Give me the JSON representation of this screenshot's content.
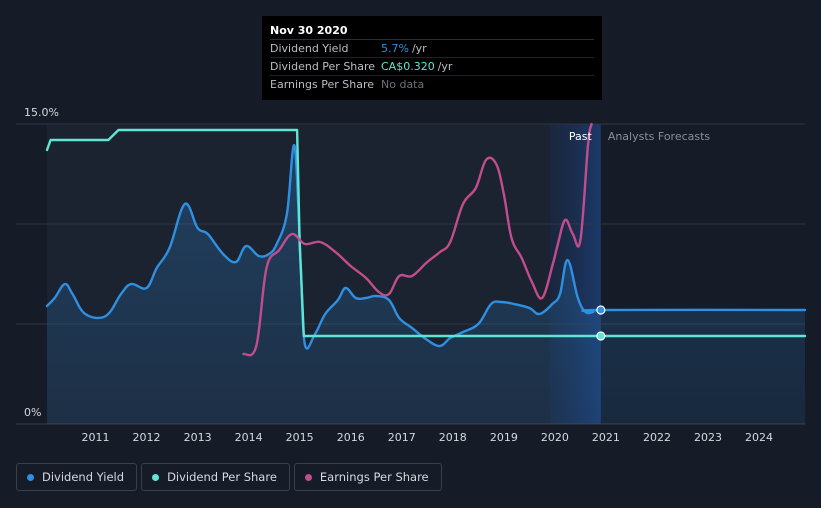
{
  "chart_data": {
    "type": "line",
    "title": "",
    "y_tick_labels": [
      "15.0%",
      "0%"
    ],
    "ylim": [
      0,
      15
    ],
    "x_tick_labels": [
      "2011",
      "2012",
      "2013",
      "2014",
      "2015",
      "2016",
      "2017",
      "2018",
      "2019",
      "2020",
      "2021",
      "2022",
      "2023",
      "2024"
    ],
    "xlim": [
      2010.05,
      2024.9
    ],
    "grid": true,
    "regions": {
      "past_label": "Past",
      "forecast_label": "Analysts Forecasts",
      "past_end": 2020.9,
      "highlight_start": 2019.9
    },
    "series": [
      {
        "name": "Dividend Yield",
        "color": "#2f8fe0",
        "filled": true,
        "points": [
          [
            2010.05,
            5.9
          ],
          [
            2010.2,
            6.3
          ],
          [
            2010.4,
            7.0
          ],
          [
            2010.55,
            6.5
          ],
          [
            2010.8,
            5.5
          ],
          [
            2011.2,
            5.4
          ],
          [
            2011.5,
            6.5
          ],
          [
            2011.7,
            7.0
          ],
          [
            2012.0,
            6.8
          ],
          [
            2012.2,
            7.8
          ],
          [
            2012.45,
            8.8
          ],
          [
            2012.75,
            11.0
          ],
          [
            2013.0,
            9.8
          ],
          [
            2013.2,
            9.5
          ],
          [
            2013.5,
            8.5
          ],
          [
            2013.75,
            8.1
          ],
          [
            2013.95,
            8.9
          ],
          [
            2014.2,
            8.4
          ],
          [
            2014.4,
            8.5
          ],
          [
            2014.55,
            9.0
          ],
          [
            2014.75,
            10.5
          ],
          [
            2014.9,
            13.9
          ],
          [
            2015.02,
            8.0
          ],
          [
            2015.1,
            4.0
          ],
          [
            2015.3,
            4.5
          ],
          [
            2015.5,
            5.5
          ],
          [
            2015.75,
            6.2
          ],
          [
            2015.9,
            6.8
          ],
          [
            2016.1,
            6.3
          ],
          [
            2016.3,
            6.3
          ],
          [
            2016.5,
            6.4
          ],
          [
            2016.75,
            6.2
          ],
          [
            2016.95,
            5.3
          ],
          [
            2017.2,
            4.8
          ],
          [
            2017.5,
            4.2
          ],
          [
            2017.75,
            3.9
          ],
          [
            2017.95,
            4.3
          ],
          [
            2018.2,
            4.6
          ],
          [
            2018.5,
            5.0
          ],
          [
            2018.75,
            6.0
          ],
          [
            2018.95,
            6.1
          ],
          [
            2019.2,
            6.0
          ],
          [
            2019.5,
            5.8
          ],
          [
            2019.7,
            5.5
          ],
          [
            2019.95,
            6.0
          ],
          [
            2020.1,
            6.5
          ],
          [
            2020.25,
            8.2
          ],
          [
            2020.45,
            6.3
          ],
          [
            2020.6,
            5.6
          ],
          [
            2020.75,
            5.6
          ],
          [
            2020.9,
            5.7
          ],
          [
            2024.9,
            5.7
          ]
        ]
      },
      {
        "name": "Dividend Per Share",
        "color": "#5ee6d3",
        "filled": false,
        "points": [
          [
            2010.05,
            13.7
          ],
          [
            2010.12,
            14.2
          ],
          [
            2011.25,
            14.2
          ],
          [
            2011.45,
            14.7
          ],
          [
            2014.95,
            14.7
          ],
          [
            2015.0,
            9.0
          ],
          [
            2015.08,
            4.4
          ],
          [
            2024.9,
            4.4
          ]
        ]
      },
      {
        "name": "Earnings Per Share",
        "color": "#c24d8c",
        "filled": false,
        "points": [
          [
            2013.9,
            3.5
          ],
          [
            2014.15,
            3.9
          ],
          [
            2014.35,
            7.8
          ],
          [
            2014.6,
            8.7
          ],
          [
            2014.85,
            9.5
          ],
          [
            2015.1,
            9.0
          ],
          [
            2015.4,
            9.1
          ],
          [
            2015.7,
            8.6
          ],
          [
            2016.0,
            7.9
          ],
          [
            2016.3,
            7.3
          ],
          [
            2016.55,
            6.6
          ],
          [
            2016.75,
            6.5
          ],
          [
            2016.95,
            7.4
          ],
          [
            2017.2,
            7.4
          ],
          [
            2017.5,
            8.1
          ],
          [
            2017.75,
            8.6
          ],
          [
            2017.95,
            9.1
          ],
          [
            2018.2,
            11.0
          ],
          [
            2018.45,
            11.8
          ],
          [
            2018.65,
            13.2
          ],
          [
            2018.85,
            13.0
          ],
          [
            2019.0,
            11.5
          ],
          [
            2019.15,
            9.3
          ],
          [
            2019.35,
            8.3
          ],
          [
            2019.55,
            7.1
          ],
          [
            2019.75,
            6.3
          ],
          [
            2019.95,
            7.9
          ],
          [
            2020.05,
            8.9
          ],
          [
            2020.2,
            10.2
          ],
          [
            2020.35,
            9.5
          ],
          [
            2020.5,
            9.2
          ],
          [
            2020.65,
            14.0
          ],
          [
            2020.72,
            15.0
          ]
        ]
      }
    ],
    "markers": [
      {
        "series": "Dividend Yield",
        "x": 2020.9,
        "y": 5.7
      },
      {
        "series": "Dividend Per Share",
        "x": 2020.9,
        "y": 4.4
      }
    ]
  },
  "tooltip": {
    "title": "Nov 30 2020",
    "rows": [
      {
        "label": "Dividend Yield",
        "value": "5.7%",
        "unit": "/yr",
        "color": "#2f8fe0"
      },
      {
        "label": "Dividend Per Share",
        "value": "CA$0.320",
        "unit": "/yr",
        "color": "#5ee6d3"
      },
      {
        "label": "Earnings Per Share",
        "value": "No data",
        "unit": "",
        "color": "#6c7078"
      }
    ]
  },
  "legend": [
    {
      "label": "Dividend Yield",
      "color": "#2f8fe0"
    },
    {
      "label": "Dividend Per Share",
      "color": "#5ee6d3"
    },
    {
      "label": "Earnings Per Share",
      "color": "#c24d8c"
    }
  ]
}
